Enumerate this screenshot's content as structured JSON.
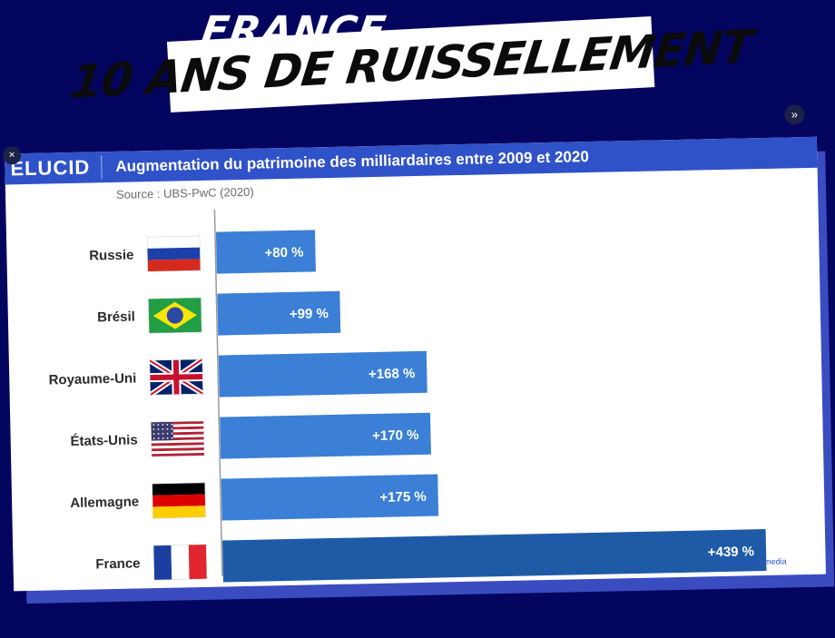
{
  "headline": {
    "top": "FRANCE",
    "main": "10 ANS DE RUISSELLEMENT"
  },
  "card": {
    "brand": "ELUCID",
    "title": "Augmentation du patrimoine des milliardaires entre 2009 et 2020",
    "source": "Source : UBS-PwC (2020)",
    "credit": "www.elucid.media"
  },
  "controls": {
    "close_glyph": "×",
    "more_glyph": "»"
  },
  "colors": {
    "background": "#04055e",
    "header": "#2f52c9",
    "bar": "#3b7fd6",
    "bar_highlight": "#1f5aa6"
  },
  "chart_data": {
    "type": "bar",
    "orientation": "horizontal",
    "title": "Augmentation du patrimoine des milliardaires entre 2009 et 2020",
    "xlabel": "",
    "ylabel": "",
    "grid": false,
    "categories": [
      "Russie",
      "Brésil",
      "Royaume-Uni",
      "États-Unis",
      "Allemagne",
      "France"
    ],
    "flags": [
      "flag-russia",
      "flag-brazil",
      "flag-uk",
      "flag-usa",
      "flag-germany",
      "flag-france"
    ],
    "values": [
      80,
      99,
      168,
      170,
      175,
      439
    ],
    "data_labels": [
      "+80 %",
      "+99 %",
      "+168 %",
      "+170 %",
      "+175 %",
      "+439 %"
    ],
    "highlight": "France",
    "xlim": [
      0,
      440
    ]
  }
}
